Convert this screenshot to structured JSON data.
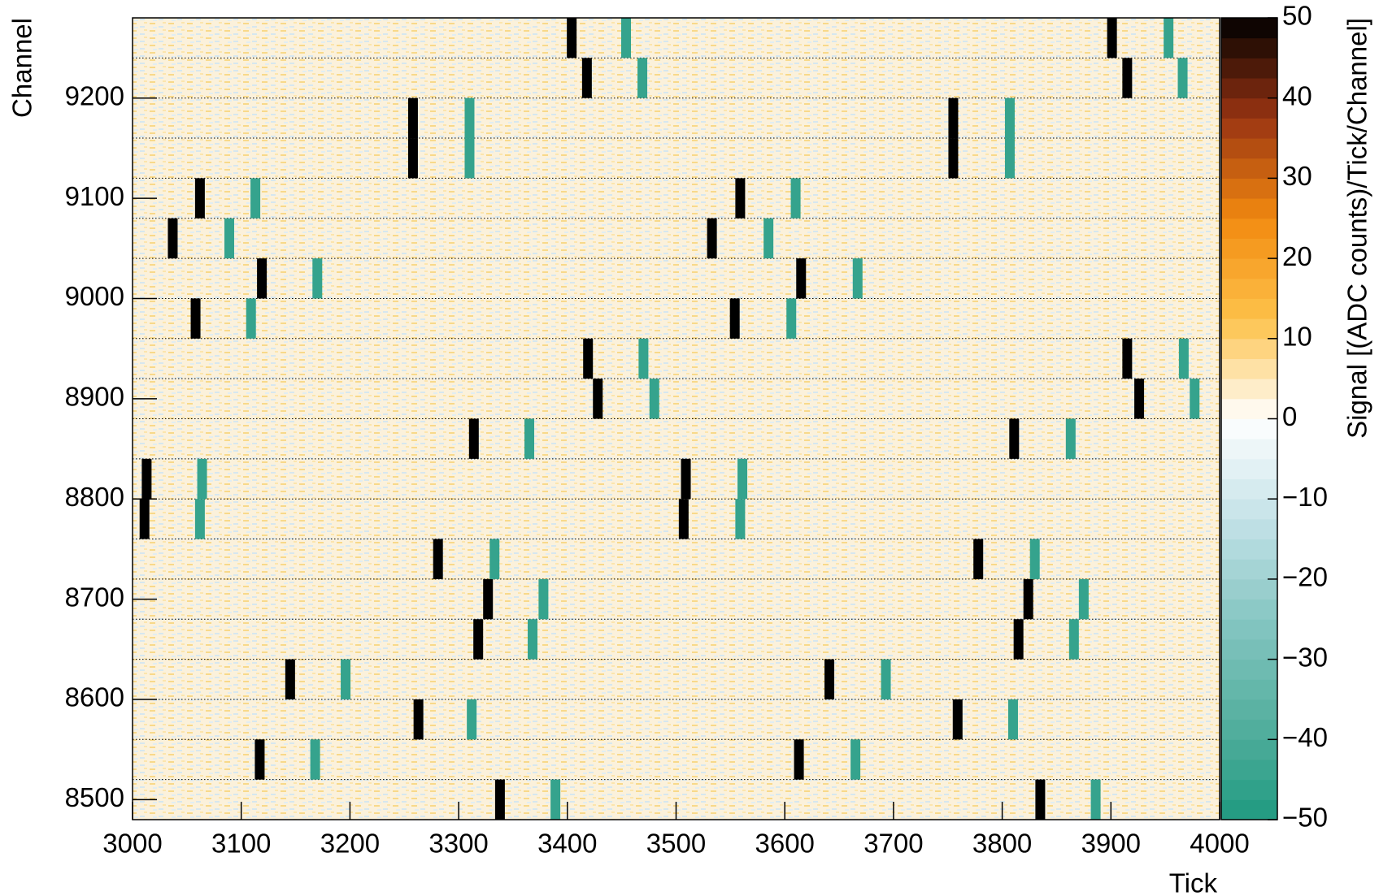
{
  "chart_data": {
    "type": "heatmap",
    "x_label": "Tick",
    "y_label": "Channel",
    "z_label": "Signal [(ADC counts)/Tick/Channel]",
    "xlim": [
      3000,
      4000
    ],
    "xticks": [
      3000,
      3100,
      3200,
      3300,
      3400,
      3500,
      3600,
      3700,
      3800,
      3900,
      4000
    ],
    "ylim": [
      8480,
      9280
    ],
    "yticks": [
      8500,
      8600,
      8700,
      8800,
      8900,
      9000,
      9100,
      9200
    ],
    "zlim": [
      -50,
      50
    ],
    "zticks": [
      {
        "value": -50,
        "label": "−50"
      },
      {
        "value": -40,
        "label": "−40"
      },
      {
        "value": -30,
        "label": "−30"
      },
      {
        "value": -20,
        "label": "−20"
      },
      {
        "value": -10,
        "label": "−10"
      },
      0,
      10,
      20,
      30,
      40,
      50
    ],
    "colorscale": [
      "#1f9a80",
      "#56b0a0",
      "#86c6c2",
      "#c4e2e8",
      "#ffffff",
      "#fdc24a",
      "#f28a10",
      "#9a3412",
      "#000000"
    ],
    "hits": [
      {
        "channels": [
          8480,
          8520
        ],
        "tick": 3338,
        "value": 50
      },
      {
        "channels": [
          8480,
          8520
        ],
        "tick": 3389,
        "value": -45
      },
      {
        "channels": [
          8480,
          8520
        ],
        "tick": 3835,
        "value": 50
      },
      {
        "channels": [
          8480,
          8520
        ],
        "tick": 3886,
        "value": -45
      },
      {
        "channels": [
          8520,
          8560
        ],
        "tick": 3117,
        "value": 50
      },
      {
        "channels": [
          8520,
          8560
        ],
        "tick": 3168,
        "value": -45
      },
      {
        "channels": [
          8520,
          8560
        ],
        "tick": 3613,
        "value": 50
      },
      {
        "channels": [
          8520,
          8560
        ],
        "tick": 3665,
        "value": -45
      },
      {
        "channels": [
          8560,
          8600
        ],
        "tick": 3263,
        "value": 50
      },
      {
        "channels": [
          8560,
          8600
        ],
        "tick": 3312,
        "value": -45
      },
      {
        "channels": [
          8560,
          8600
        ],
        "tick": 3759,
        "value": 50
      },
      {
        "channels": [
          8560,
          8600
        ],
        "tick": 3810,
        "value": -45
      },
      {
        "channels": [
          8600,
          8640
        ],
        "tick": 3145,
        "value": 50
      },
      {
        "channels": [
          8600,
          8640
        ],
        "tick": 3196,
        "value": -45
      },
      {
        "channels": [
          8600,
          8640
        ],
        "tick": 3641,
        "value": 50
      },
      {
        "channels": [
          8600,
          8640
        ],
        "tick": 3693,
        "value": -45
      },
      {
        "channels": [
          8640,
          8680
        ],
        "tick": 3318,
        "value": 50
      },
      {
        "channels": [
          8640,
          8680
        ],
        "tick": 3368,
        "value": -45
      },
      {
        "channels": [
          8640,
          8680
        ],
        "tick": 3815,
        "value": 50
      },
      {
        "channels": [
          8640,
          8680
        ],
        "tick": 3866,
        "value": -45
      },
      {
        "channels": [
          8680,
          8720
        ],
        "tick": 3327,
        "value": 50
      },
      {
        "channels": [
          8680,
          8720
        ],
        "tick": 3378,
        "value": -45
      },
      {
        "channels": [
          8680,
          8720
        ],
        "tick": 3824,
        "value": 50
      },
      {
        "channels": [
          8680,
          8720
        ],
        "tick": 3875,
        "value": -45
      },
      {
        "channels": [
          8720,
          8760
        ],
        "tick": 3281,
        "value": 50
      },
      {
        "channels": [
          8720,
          8760
        ],
        "tick": 3333,
        "value": -45
      },
      {
        "channels": [
          8720,
          8760
        ],
        "tick": 3778,
        "value": 50
      },
      {
        "channels": [
          8720,
          8760
        ],
        "tick": 3830,
        "value": -45
      },
      {
        "channels": [
          8760,
          8800
        ],
        "tick": 3011,
        "value": 50
      },
      {
        "channels": [
          8760,
          8800
        ],
        "tick": 3062,
        "value": -45
      },
      {
        "channels": [
          8760,
          8800
        ],
        "tick": 3507,
        "value": 50
      },
      {
        "channels": [
          8760,
          8800
        ],
        "tick": 3559,
        "value": -45
      },
      {
        "channels": [
          8800,
          8840
        ],
        "tick": 3013,
        "value": 50
      },
      {
        "channels": [
          8800,
          8840
        ],
        "tick": 3064,
        "value": -45
      },
      {
        "channels": [
          8800,
          8840
        ],
        "tick": 3509,
        "value": 50
      },
      {
        "channels": [
          8800,
          8840
        ],
        "tick": 3561,
        "value": -45
      },
      {
        "channels": [
          8840,
          8880
        ],
        "tick": 3314,
        "value": 50
      },
      {
        "channels": [
          8840,
          8880
        ],
        "tick": 3365,
        "value": -45
      },
      {
        "channels": [
          8840,
          8880
        ],
        "tick": 3811,
        "value": 50
      },
      {
        "channels": [
          8840,
          8880
        ],
        "tick": 3863,
        "value": -45
      },
      {
        "channels": [
          8880,
          8920
        ],
        "tick": 3428,
        "value": 50
      },
      {
        "channels": [
          8880,
          8920
        ],
        "tick": 3480,
        "value": -45
      },
      {
        "channels": [
          8880,
          8920
        ],
        "tick": 3926,
        "value": 50
      },
      {
        "channels": [
          8880,
          8920
        ],
        "tick": 3977,
        "value": -45
      },
      {
        "channels": [
          8920,
          8960
        ],
        "tick": 3419,
        "value": 50
      },
      {
        "channels": [
          8920,
          8960
        ],
        "tick": 3470,
        "value": -45
      },
      {
        "channels": [
          8920,
          8960
        ],
        "tick": 3915,
        "value": 50
      },
      {
        "channels": [
          8920,
          8960
        ],
        "tick": 3967,
        "value": -45
      },
      {
        "channels": [
          8960,
          9000
        ],
        "tick": 3058,
        "value": 50
      },
      {
        "channels": [
          8960,
          9000
        ],
        "tick": 3109,
        "value": -45
      },
      {
        "channels": [
          8960,
          9000
        ],
        "tick": 3554,
        "value": 50
      },
      {
        "channels": [
          8960,
          9000
        ],
        "tick": 3606,
        "value": -45
      },
      {
        "channels": [
          9000,
          9040
        ],
        "tick": 3119,
        "value": 50
      },
      {
        "channels": [
          9000,
          9040
        ],
        "tick": 3170,
        "value": -45
      },
      {
        "channels": [
          9000,
          9040
        ],
        "tick": 3615,
        "value": 50
      },
      {
        "channels": [
          9000,
          9040
        ],
        "tick": 3667,
        "value": -45
      },
      {
        "channels": [
          9040,
          9080
        ],
        "tick": 3037,
        "value": 50
      },
      {
        "channels": [
          9040,
          9080
        ],
        "tick": 3089,
        "value": -45
      },
      {
        "channels": [
          9040,
          9080
        ],
        "tick": 3533,
        "value": 50
      },
      {
        "channels": [
          9040,
          9080
        ],
        "tick": 3585,
        "value": -45
      },
      {
        "channels": [
          9080,
          9120
        ],
        "tick": 3062,
        "value": 50
      },
      {
        "channels": [
          9080,
          9120
        ],
        "tick": 3113,
        "value": -45
      },
      {
        "channels": [
          9080,
          9120
        ],
        "tick": 3559,
        "value": 50
      },
      {
        "channels": [
          9080,
          9120
        ],
        "tick": 3610,
        "value": -45
      },
      {
        "channels": [
          9120,
          9160
        ],
        "tick": 3258,
        "value": 50
      },
      {
        "channels": [
          9120,
          9160
        ],
        "tick": 3310,
        "value": -45
      },
      {
        "channels": [
          9120,
          9160
        ],
        "tick": 3755,
        "value": 50
      },
      {
        "channels": [
          9120,
          9160
        ],
        "tick": 3807,
        "value": -45
      },
      {
        "channels": [
          9160,
          9200
        ],
        "tick": 3258,
        "value": 50
      },
      {
        "channels": [
          9160,
          9200
        ],
        "tick": 3310,
        "value": -45
      },
      {
        "channels": [
          9160,
          9200
        ],
        "tick": 3755,
        "value": 50
      },
      {
        "channels": [
          9160,
          9200
        ],
        "tick": 3807,
        "value": -45
      },
      {
        "channels": [
          9200,
          9240
        ],
        "tick": 3418,
        "value": 50
      },
      {
        "channels": [
          9200,
          9240
        ],
        "tick": 3469,
        "value": -45
      },
      {
        "channels": [
          9200,
          9240
        ],
        "tick": 3915,
        "value": 50
      },
      {
        "channels": [
          9200,
          9240
        ],
        "tick": 3966,
        "value": -45
      },
      {
        "channels": [
          9240,
          9280
        ],
        "tick": 3404,
        "value": 50
      },
      {
        "channels": [
          9240,
          9280
        ],
        "tick": 3454,
        "value": -45
      },
      {
        "channels": [
          9240,
          9280
        ],
        "tick": 3901,
        "value": 50
      },
      {
        "channels": [
          9240,
          9280
        ],
        "tick": 3953,
        "value": -45
      }
    ]
  }
}
